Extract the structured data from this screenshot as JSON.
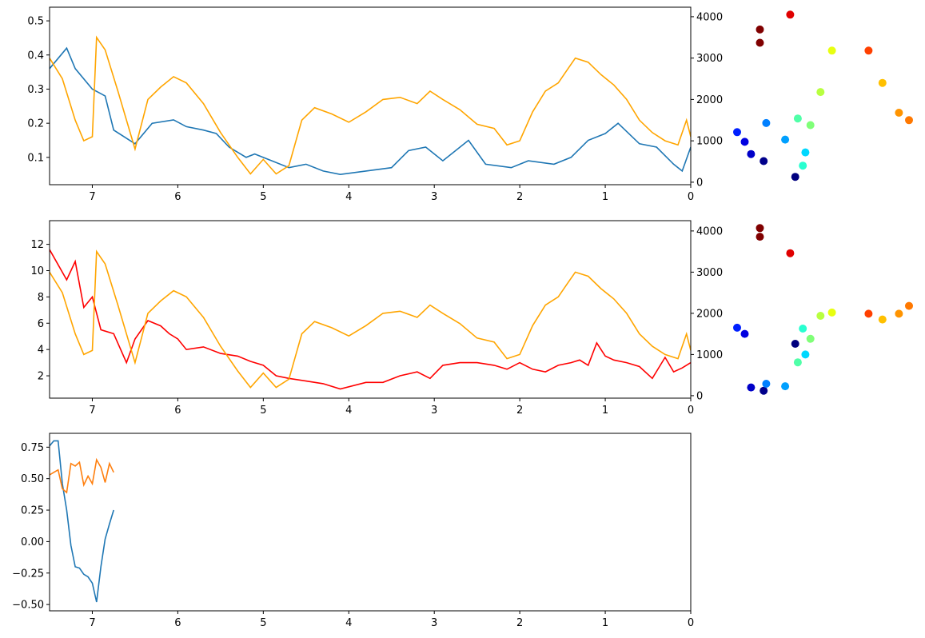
{
  "chart_data": [
    {
      "type": "line",
      "id": "panel1",
      "x_reversed": true,
      "xlim": [
        7.5,
        0
      ],
      "ylim": [
        0.02,
        0.54
      ],
      "y2lim": [
        -60,
        4230
      ],
      "xticks": [
        "7",
        "6",
        "5",
        "4",
        "3",
        "2",
        "1",
        "0"
      ],
      "yticks": [
        "0.1",
        "0.2",
        "0.3",
        "0.4",
        "0.5"
      ],
      "y2ticks": [
        "0",
        "1000",
        "2000",
        "3000",
        "4000"
      ],
      "series": [
        {
          "color": "#1f77b4",
          "axis": "left",
          "x": [
            7.5,
            7.3,
            7.2,
            7.0,
            6.85,
            6.75,
            6.5,
            6.3,
            6.05,
            5.9,
            5.7,
            5.55,
            5.4,
            5.2,
            5.1,
            4.9,
            4.7,
            4.5,
            4.3,
            4.1,
            3.8,
            3.5,
            3.3,
            3.1,
            2.9,
            2.6,
            2.4,
            2.1,
            1.9,
            1.6,
            1.4,
            1.2,
            1.0,
            0.85,
            0.6,
            0.4,
            0.2,
            0.1,
            0.0
          ],
          "y": [
            0.36,
            0.42,
            0.36,
            0.3,
            0.28,
            0.18,
            0.14,
            0.2,
            0.21,
            0.19,
            0.18,
            0.17,
            0.13,
            0.1,
            0.11,
            0.09,
            0.07,
            0.08,
            0.06,
            0.05,
            0.06,
            0.07,
            0.12,
            0.13,
            0.09,
            0.15,
            0.08,
            0.07,
            0.09,
            0.08,
            0.1,
            0.15,
            0.17,
            0.2,
            0.14,
            0.13,
            0.08,
            0.06,
            0.13
          ]
        },
        {
          "color": "#ffa500",
          "axis": "right",
          "x": [
            7.5,
            7.35,
            7.2,
            7.1,
            7.0,
            6.95,
            6.85,
            6.7,
            6.5,
            6.35,
            6.2,
            6.05,
            5.9,
            5.7,
            5.5,
            5.3,
            5.15,
            5.0,
            4.85,
            4.7,
            4.55,
            4.4,
            4.2,
            4.0,
            3.8,
            3.6,
            3.4,
            3.2,
            3.05,
            2.9,
            2.7,
            2.5,
            2.3,
            2.15,
            2.0,
            1.85,
            1.7,
            1.55,
            1.45,
            1.35,
            1.2,
            1.05,
            0.9,
            0.75,
            0.6,
            0.45,
            0.3,
            0.15,
            0.05,
            0.0
          ],
          "y": [
            3000,
            2500,
            1500,
            1000,
            1100,
            3500,
            3200,
            2200,
            800,
            2000,
            2300,
            2550,
            2400,
            1900,
            1200,
            600,
            200,
            550,
            200,
            400,
            1500,
            1800,
            1650,
            1450,
            1700,
            2000,
            2050,
            1900,
            2200,
            2000,
            1750,
            1400,
            1300,
            900,
            1000,
            1700,
            2200,
            2400,
            2700,
            3000,
            2900,
            2600,
            2350,
            2000,
            1500,
            1200,
            1000,
            900,
            1500,
            1100
          ]
        }
      ]
    },
    {
      "type": "scatter",
      "id": "scatter1",
      "points": [
        {
          "x": 0.0,
          "y": 1210,
          "color": "#0020ff"
        },
        {
          "x": 0.6,
          "y": 975,
          "color": "#0000e0"
        },
        {
          "x": 1.1,
          "y": 680,
          "color": "#0000c8"
        },
        {
          "x": 2.1,
          "y": 510,
          "color": "#00008b"
        },
        {
          "x": 2.3,
          "y": 1430,
          "color": "#0080ff"
        },
        {
          "x": 1.8,
          "y": 3690,
          "color": "#800000"
        },
        {
          "x": 1.8,
          "y": 3370,
          "color": "#800000"
        },
        {
          "x": 4.2,
          "y": 4050,
          "color": "#e00000"
        },
        {
          "x": 3.8,
          "y": 1030,
          "color": "#00a0ff"
        },
        {
          "x": 4.6,
          "y": 130,
          "color": "#00007f"
        },
        {
          "x": 4.8,
          "y": 1540,
          "color": "#50ffa8"
        },
        {
          "x": 5.2,
          "y": 400,
          "color": "#28ffd0"
        },
        {
          "x": 5.4,
          "y": 720,
          "color": "#00d8ff"
        },
        {
          "x": 5.8,
          "y": 1380,
          "color": "#80ff78"
        },
        {
          "x": 6.6,
          "y": 2180,
          "color": "#b8ff40"
        },
        {
          "x": 7.5,
          "y": 3180,
          "color": "#e8ff10"
        },
        {
          "x": 10.4,
          "y": 3180,
          "color": "#ff4000"
        },
        {
          "x": 11.5,
          "y": 2400,
          "color": "#ffc000"
        },
        {
          "x": 12.8,
          "y": 1680,
          "color": "#ff9400"
        },
        {
          "x": 13.6,
          "y": 1500,
          "color": "#ff7800"
        }
      ]
    },
    {
      "type": "line",
      "id": "panel2",
      "x_reversed": true,
      "xlim": [
        7.5,
        0
      ],
      "ylim": [
        0.3,
        13.8
      ],
      "y2lim": [
        -60,
        4250
      ],
      "xticks": [
        "7",
        "6",
        "5",
        "4",
        "3",
        "2",
        "1",
        "0"
      ],
      "yticks": [
        "2",
        "4",
        "6",
        "8",
        "10",
        "12"
      ],
      "y2ticks": [
        "0",
        "1000",
        "2000",
        "3000",
        "4000"
      ],
      "series": [
        {
          "color": "#ff0000",
          "axis": "left",
          "x": [
            7.5,
            7.3,
            7.2,
            7.1,
            7.0,
            6.9,
            6.75,
            6.6,
            6.5,
            6.35,
            6.2,
            6.1,
            6.0,
            5.9,
            5.7,
            5.5,
            5.3,
            5.15,
            5.0,
            4.85,
            4.7,
            4.5,
            4.3,
            4.1,
            3.8,
            3.6,
            3.4,
            3.2,
            3.05,
            2.9,
            2.7,
            2.5,
            2.3,
            2.15,
            2.0,
            1.85,
            1.7,
            1.55,
            1.4,
            1.3,
            1.2,
            1.1,
            1.0,
            0.9,
            0.75,
            0.6,
            0.45,
            0.3,
            0.2,
            0.1,
            0.0
          ],
          "y": [
            11.6,
            9.3,
            10.7,
            7.2,
            8.0,
            5.5,
            5.2,
            3.0,
            4.8,
            6.2,
            5.8,
            5.2,
            4.8,
            4.0,
            4.2,
            3.7,
            3.5,
            3.1,
            2.8,
            2.0,
            1.8,
            1.6,
            1.4,
            1.0,
            1.5,
            1.5,
            2.0,
            2.3,
            1.8,
            2.8,
            3.0,
            3.0,
            2.8,
            2.5,
            3.0,
            2.5,
            2.3,
            2.8,
            3.0,
            3.2,
            2.8,
            4.5,
            3.5,
            3.2,
            3.0,
            2.7,
            1.8,
            3.4,
            2.3,
            2.6,
            3.0
          ]
        },
        {
          "color": "#ffa500",
          "axis": "right",
          "x": [
            7.5,
            7.35,
            7.2,
            7.1,
            7.0,
            6.95,
            6.85,
            6.7,
            6.5,
            6.35,
            6.2,
            6.05,
            5.9,
            5.7,
            5.5,
            5.3,
            5.15,
            5.0,
            4.85,
            4.7,
            4.55,
            4.4,
            4.2,
            4.0,
            3.8,
            3.6,
            3.4,
            3.2,
            3.05,
            2.9,
            2.7,
            2.5,
            2.3,
            2.15,
            2.0,
            1.85,
            1.7,
            1.55,
            1.45,
            1.35,
            1.2,
            1.05,
            0.9,
            0.75,
            0.6,
            0.45,
            0.3,
            0.15,
            0.05,
            0.0
          ],
          "y": [
            3000,
            2500,
            1500,
            1000,
            1100,
            3500,
            3200,
            2200,
            800,
            2000,
            2300,
            2550,
            2400,
            1900,
            1200,
            600,
            200,
            550,
            200,
            400,
            1500,
            1800,
            1650,
            1450,
            1700,
            2000,
            2050,
            1900,
            2200,
            2000,
            1750,
            1400,
            1300,
            900,
            1000,
            1700,
            2200,
            2400,
            2700,
            3000,
            2900,
            2600,
            2350,
            2000,
            1500,
            1200,
            1000,
            900,
            1500,
            1100
          ]
        }
      ]
    },
    {
      "type": "scatter",
      "id": "scatter2",
      "points": [
        {
          "x": 0.0,
          "y": 1650,
          "color": "#0020ff"
        },
        {
          "x": 0.6,
          "y": 1500,
          "color": "#0000e0"
        },
        {
          "x": 1.1,
          "y": 200,
          "color": "#0000c8"
        },
        {
          "x": 2.1,
          "y": 120,
          "color": "#00008b"
        },
        {
          "x": 2.3,
          "y": 290,
          "color": "#0080ff"
        },
        {
          "x": 1.8,
          "y": 4070,
          "color": "#800000"
        },
        {
          "x": 1.8,
          "y": 3860,
          "color": "#800000"
        },
        {
          "x": 4.2,
          "y": 3460,
          "color": "#e00000"
        },
        {
          "x": 3.8,
          "y": 230,
          "color": "#00a0ff"
        },
        {
          "x": 4.6,
          "y": 1260,
          "color": "#00007f"
        },
        {
          "x": 4.8,
          "y": 810,
          "color": "#50ffa8"
        },
        {
          "x": 5.2,
          "y": 1630,
          "color": "#28ffd0"
        },
        {
          "x": 5.4,
          "y": 1000,
          "color": "#00d8ff"
        },
        {
          "x": 5.8,
          "y": 1380,
          "color": "#80ff78"
        },
        {
          "x": 6.6,
          "y": 1940,
          "color": "#b8ff40"
        },
        {
          "x": 7.5,
          "y": 2020,
          "color": "#e8ff10"
        },
        {
          "x": 10.4,
          "y": 1990,
          "color": "#ff4000"
        },
        {
          "x": 11.5,
          "y": 1850,
          "color": "#ffc000"
        },
        {
          "x": 12.8,
          "y": 1990,
          "color": "#ff9400"
        },
        {
          "x": 13.6,
          "y": 2180,
          "color": "#ff7800"
        }
      ]
    },
    {
      "type": "line",
      "id": "panel3",
      "x_reversed": true,
      "xlim": [
        7.5,
        0
      ],
      "ylim": [
        -0.55,
        0.86
      ],
      "xticks": [
        "7",
        "6",
        "5",
        "4",
        "3",
        "2",
        "1",
        "0"
      ],
      "yticks": [
        "−0.50",
        "−0.25",
        "0.00",
        "0.25",
        "0.50",
        "0.75"
      ],
      "series": [
        {
          "color": "#1f77b4",
          "axis": "left",
          "x": [
            7.5,
            7.45,
            7.4,
            7.35,
            7.3,
            7.25,
            7.2,
            7.15,
            7.1,
            7.05,
            7.0,
            6.95,
            6.9,
            6.85,
            6.8,
            6.75
          ],
          "y": [
            0.76,
            0.8,
            0.8,
            0.46,
            0.25,
            -0.03,
            -0.2,
            -0.21,
            -0.26,
            -0.28,
            -0.33,
            -0.48,
            -0.2,
            0.02,
            0.14,
            0.25
          ]
        },
        {
          "color": "#ff7f0e",
          "axis": "left",
          "x": [
            7.5,
            7.45,
            7.4,
            7.35,
            7.3,
            7.25,
            7.2,
            7.15,
            7.1,
            7.05,
            7.0,
            6.95,
            6.9,
            6.85,
            6.8,
            6.75
          ],
          "y": [
            0.53,
            0.55,
            0.57,
            0.42,
            0.39,
            0.62,
            0.6,
            0.63,
            0.45,
            0.52,
            0.46,
            0.65,
            0.59,
            0.47,
            0.62,
            0.55
          ]
        }
      ]
    }
  ]
}
